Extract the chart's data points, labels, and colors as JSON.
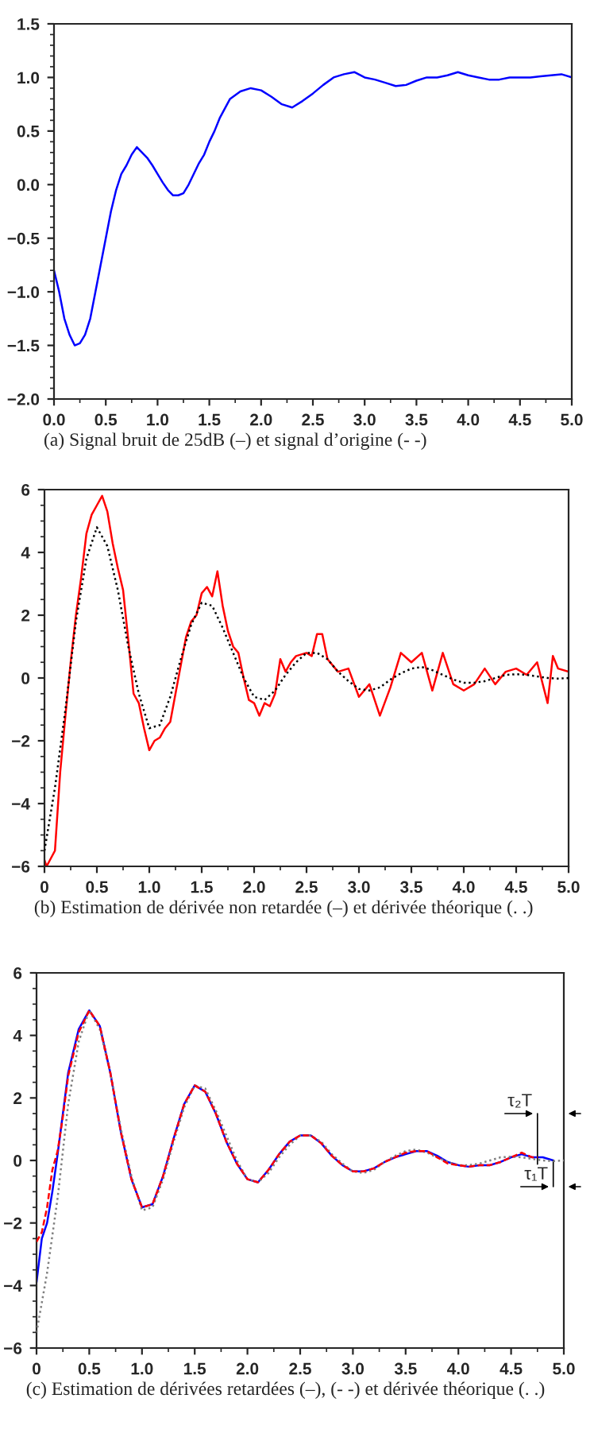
{
  "chart_data": [
    {
      "type": "line",
      "title": "(a) Signal bruit de 25dB (–) et signal d’origine (- -)",
      "series": [
        {
          "color": "#0000ff",
          "line_style": "solid",
          "x": [
            0,
            0.05,
            0.1,
            0.15,
            0.2,
            0.25,
            0.3,
            0.35,
            0.4,
            0.45,
            0.5,
            0.55,
            0.6,
            0.65,
            0.7,
            0.75,
            0.8,
            0.85,
            0.9,
            0.95,
            1.0,
            1.05,
            1.1,
            1.15,
            1.2,
            1.25,
            1.3,
            1.35,
            1.4,
            1.45,
            1.5,
            1.55,
            1.6,
            1.7,
            1.8,
            1.9,
            2.0,
            2.1,
            2.2,
            2.3,
            2.4,
            2.5,
            2.6,
            2.7,
            2.8,
            2.9,
            3.0,
            3.1,
            3.2,
            3.3,
            3.4,
            3.5,
            3.6,
            3.7,
            3.8,
            3.9,
            4.0,
            4.1,
            4.2,
            4.3,
            4.4,
            4.5,
            4.6,
            4.7,
            4.8,
            4.9,
            5.0
          ],
          "values": [
            -0.8,
            -1.0,
            -1.25,
            -1.4,
            -1.5,
            -1.48,
            -1.4,
            -1.25,
            -1.0,
            -0.75,
            -0.5,
            -0.25,
            -0.05,
            0.1,
            0.18,
            0.28,
            0.35,
            0.3,
            0.25,
            0.18,
            0.1,
            0.02,
            -0.05,
            -0.1,
            -0.1,
            -0.08,
            0.0,
            0.1,
            0.2,
            0.28,
            0.4,
            0.5,
            0.62,
            0.8,
            0.87,
            0.9,
            0.88,
            0.82,
            0.75,
            0.72,
            0.78,
            0.85,
            0.93,
            1.0,
            1.03,
            1.05,
            1.0,
            0.98,
            0.95,
            0.92,
            0.93,
            0.97,
            1.0,
            1.0,
            1.02,
            1.05,
            1.02,
            1.0,
            0.98,
            0.98,
            1.0,
            1.0,
            1.0,
            1.01,
            1.02,
            1.03,
            1.0
          ]
        }
      ],
      "xlim": [
        0,
        5
      ],
      "ylim": [
        -2,
        1.5
      ],
      "xticks": [
        {
          "value": 0,
          "label": "0.0"
        },
        0.5,
        {
          "value": 1,
          "label": "1.0"
        },
        1.5,
        {
          "value": 2,
          "label": "2.0"
        },
        2.5,
        {
          "value": 3,
          "label": "3.0"
        },
        3.5,
        {
          "value": 4,
          "label": "4.0"
        },
        4.5,
        {
          "value": 5,
          "label": "5.0"
        }
      ],
      "yticks": [
        {
          "value": -2,
          "label": "−2.0"
        },
        {
          "value": -1.5,
          "label": "−1.5"
        },
        {
          "value": -1,
          "label": "−1.0"
        },
        {
          "value": -0.5,
          "label": "−0.5"
        },
        {
          "value": 0,
          "label": "0.0"
        },
        0.5,
        {
          "value": 1,
          "label": "1.0"
        },
        1.5
      ],
      "grid": false,
      "legend": false
    },
    {
      "type": "line",
      "title": "(b) Estimation de dérivée non retardée (–) et dérivée théorique (. .)",
      "series": [
        {
          "color": "#ff0000",
          "line_style": "solid",
          "x": [
            0,
            0.02,
            0.1,
            0.15,
            0.2,
            0.25,
            0.3,
            0.35,
            0.4,
            0.45,
            0.5,
            0.55,
            0.6,
            0.65,
            0.7,
            0.75,
            0.8,
            0.85,
            0.9,
            0.95,
            1.0,
            1.05,
            1.1,
            1.15,
            1.2,
            1.25,
            1.3,
            1.35,
            1.4,
            1.45,
            1.5,
            1.55,
            1.6,
            1.65,
            1.7,
            1.75,
            1.8,
            1.85,
            1.9,
            1.95,
            2.0,
            2.05,
            2.1,
            2.15,
            2.2,
            2.25,
            2.3,
            2.35,
            2.4,
            2.5,
            2.55,
            2.6,
            2.65,
            2.7,
            2.8,
            2.9,
            3.0,
            3.1,
            3.2,
            3.3,
            3.4,
            3.5,
            3.6,
            3.7,
            3.8,
            3.9,
            4.0,
            4.1,
            4.2,
            4.3,
            4.4,
            4.5,
            4.6,
            4.7,
            4.8,
            4.85,
            4.9,
            5.0
          ],
          "values": [
            -5.8,
            -6,
            -5.5,
            -3,
            -1.2,
            0.5,
            2,
            3.2,
            4.6,
            5.2,
            5.5,
            5.8,
            5.3,
            4.3,
            3.5,
            2.8,
            1.2,
            -0.5,
            -0.8,
            -1.6,
            -2.3,
            -2.0,
            -1.9,
            -1.6,
            -1.4,
            -0.5,
            0.4,
            1.3,
            1.8,
            2.0,
            2.7,
            2.9,
            2.6,
            3.4,
            2.3,
            1.5,
            1.0,
            0.8,
            0.0,
            -0.7,
            -0.8,
            -1.2,
            -0.8,
            -0.9,
            -0.5,
            0.6,
            0.2,
            0.5,
            0.7,
            0.8,
            0.7,
            1.4,
            1.4,
            0.6,
            0.2,
            0.3,
            -0.6,
            -0.2,
            -1.2,
            -0.3,
            0.8,
            0.5,
            0.8,
            -0.4,
            0.8,
            -0.2,
            -0.4,
            -0.2,
            0.3,
            -0.2,
            0.2,
            0.3,
            0.1,
            0.5,
            -0.8,
            0.7,
            0.3,
            0.2
          ]
        },
        {
          "color": "#000000",
          "line_style": "dotted",
          "x": [
            0,
            0.1,
            0.2,
            0.3,
            0.4,
            0.5,
            0.6,
            0.7,
            0.8,
            0.9,
            1.0,
            1.1,
            1.2,
            1.3,
            1.4,
            1.5,
            1.6,
            1.7,
            1.8,
            1.9,
            2.0,
            2.1,
            2.2,
            2.3,
            2.4,
            2.5,
            2.6,
            2.7,
            2.8,
            2.9,
            3.0,
            3.1,
            3.2,
            3.3,
            3.4,
            3.5,
            3.6,
            3.7,
            3.8,
            3.9,
            4.0,
            4.1,
            4.2,
            4.3,
            4.4,
            4.5,
            4.6,
            4.7,
            4.8,
            4.9,
            5.0
          ],
          "values": [
            -5.5,
            -3.5,
            -1,
            1.8,
            3.8,
            4.8,
            4.2,
            2.8,
            1.0,
            -0.5,
            -1.6,
            -1.5,
            -0.6,
            0.6,
            1.7,
            2.4,
            2.3,
            1.6,
            0.8,
            0.0,
            -0.6,
            -0.7,
            -0.4,
            0.1,
            0.5,
            0.8,
            0.8,
            0.6,
            0.2,
            -0.1,
            -0.35,
            -0.4,
            -0.3,
            -0.05,
            0.15,
            0.3,
            0.35,
            0.25,
            0.1,
            -0.05,
            -0.15,
            -0.15,
            -0.1,
            0.0,
            0.1,
            0.12,
            0.1,
            0.05,
            0.0,
            -0.02,
            0.0
          ]
        }
      ],
      "xlim": [
        0,
        5
      ],
      "ylim": [
        -6,
        6
      ],
      "xticks": [
        0,
        0.5,
        {
          "value": 1,
          "label": "1.0"
        },
        1.5,
        {
          "value": 2,
          "label": "2.0"
        },
        2.5,
        {
          "value": 3,
          "label": "3.0"
        },
        3.5,
        {
          "value": 4,
          "label": "4.0"
        },
        4.5,
        {
          "value": 5,
          "label": "5.0"
        }
      ],
      "yticks": [
        {
          "value": -6,
          "label": "−6"
        },
        {
          "value": -4,
          "label": "−4"
        },
        {
          "value": -2,
          "label": "−2"
        },
        0,
        2,
        4,
        6
      ],
      "grid": false,
      "legend": false
    },
    {
      "type": "line",
      "title": "(c) Estimation de dérivées retardées (–), (- -) et dérivée théorique (. .)",
      "series": [
        {
          "color": "#808080",
          "line_style": "dotted",
          "x": [
            0,
            0.1,
            0.2,
            0.3,
            0.4,
            0.5,
            0.6,
            0.7,
            0.8,
            0.9,
            1.0,
            1.1,
            1.2,
            1.3,
            1.4,
            1.5,
            1.6,
            1.7,
            1.8,
            1.9,
            2.0,
            2.1,
            2.2,
            2.3,
            2.4,
            2.5,
            2.6,
            2.7,
            2.8,
            2.9,
            3.0,
            3.1,
            3.2,
            3.3,
            3.4,
            3.5,
            3.6,
            3.7,
            3.8,
            3.9,
            4.0,
            4.1,
            4.2,
            4.3,
            4.4,
            4.5,
            4.6,
            4.7,
            4.8,
            4.9,
            5.0
          ],
          "values": [
            -5.5,
            -3.6,
            -1.2,
            1.8,
            3.8,
            4.8,
            4.2,
            2.8,
            1.0,
            -0.5,
            -1.6,
            -1.5,
            -0.6,
            0.6,
            1.7,
            2.4,
            2.3,
            1.6,
            0.8,
            0.0,
            -0.6,
            -0.7,
            -0.4,
            0.1,
            0.5,
            0.8,
            0.8,
            0.6,
            0.2,
            -0.1,
            -0.35,
            -0.4,
            -0.3,
            -0.05,
            0.15,
            0.3,
            0.35,
            0.25,
            0.1,
            -0.05,
            -0.15,
            -0.15,
            -0.1,
            0.0,
            0.1,
            0.12,
            0.1,
            0.05,
            0.0,
            -0.02,
            0.0
          ]
        },
        {
          "color": "#ff0000",
          "line_style": "dashed",
          "x": [
            0,
            0.05,
            0.1,
            0.15,
            0.2,
            0.25,
            0.3,
            0.4,
            0.5,
            0.6,
            0.7,
            0.8,
            0.9,
            1.0,
            1.1,
            1.2,
            1.3,
            1.4,
            1.5,
            1.6,
            1.7,
            1.8,
            1.9,
            2.0,
            2.1,
            2.2,
            2.3,
            2.4,
            2.5,
            2.6,
            2.7,
            2.8,
            2.9,
            3.0,
            3.1,
            3.2,
            3.3,
            3.4,
            3.5,
            3.6,
            3.7,
            3.8,
            3.9,
            4.0,
            4.1,
            4.2,
            4.3,
            4.4,
            4.5,
            4.6,
            4.7,
            4.75
          ],
          "values": [
            -2.6,
            -2.3,
            -1.5,
            -0.3,
            0.3,
            1.4,
            2.7,
            4.1,
            4.8,
            4.3,
            2.8,
            0.9,
            -0.6,
            -1.5,
            -1.4,
            -0.5,
            0.7,
            1.8,
            2.4,
            2.2,
            1.5,
            0.6,
            -0.1,
            -0.6,
            -0.7,
            -0.3,
            0.2,
            0.6,
            0.8,
            0.8,
            0.55,
            0.15,
            -0.15,
            -0.35,
            -0.35,
            -0.25,
            -0.05,
            0.1,
            0.25,
            0.3,
            0.3,
            0.1,
            -0.1,
            -0.15,
            -0.2,
            -0.15,
            -0.15,
            -0.05,
            0.1,
            0.25,
            0.1,
            0.1
          ]
        },
        {
          "color": "#0000ff",
          "line_style": "solid",
          "x": [
            0,
            0.05,
            0.1,
            0.15,
            0.2,
            0.25,
            0.3,
            0.4,
            0.5,
            0.6,
            0.7,
            0.8,
            0.9,
            1.0,
            1.1,
            1.2,
            1.3,
            1.4,
            1.5,
            1.6,
            1.7,
            1.8,
            1.9,
            2.0,
            2.1,
            2.2,
            2.3,
            2.4,
            2.5,
            2.6,
            2.7,
            2.8,
            2.9,
            3.0,
            3.1,
            3.2,
            3.3,
            3.4,
            3.5,
            3.6,
            3.7,
            3.8,
            3.9,
            4.0,
            4.1,
            4.2,
            4.3,
            4.4,
            4.5,
            4.6,
            4.7,
            4.8,
            4.9
          ],
          "values": [
            -3.9,
            -2.5,
            -2.0,
            -1.0,
            0.2,
            1.5,
            2.8,
            4.2,
            4.8,
            4.3,
            2.8,
            0.9,
            -0.6,
            -1.5,
            -1.4,
            -0.5,
            0.7,
            1.8,
            2.4,
            2.2,
            1.5,
            0.6,
            -0.1,
            -0.6,
            -0.7,
            -0.3,
            0.2,
            0.6,
            0.8,
            0.8,
            0.55,
            0.15,
            -0.15,
            -0.35,
            -0.35,
            -0.25,
            -0.05,
            0.1,
            0.2,
            0.3,
            0.3,
            0.15,
            -0.05,
            -0.15,
            -0.2,
            -0.15,
            -0.15,
            -0.05,
            0.1,
            0.2,
            0.1,
            0.1,
            0.0
          ]
        }
      ],
      "xlim": [
        0,
        5
      ],
      "ylim": [
        -6,
        6
      ],
      "xticks": [
        0,
        0.5,
        {
          "value": 1,
          "label": "1.0"
        },
        1.5,
        {
          "value": 2,
          "label": "2.0"
        },
        2.5,
        {
          "value": 3,
          "label": "3.0"
        },
        3.5,
        {
          "value": 4,
          "label": "4.0"
        },
        4.5,
        {
          "value": 5,
          "label": "5.0"
        }
      ],
      "yticks": [
        {
          "value": -6,
          "label": "−6"
        },
        {
          "value": -4,
          "label": "−4"
        },
        {
          "value": -2,
          "label": "−2"
        },
        0,
        2,
        4,
        6
      ],
      "annotations": [
        "τ₂T",
        "τ₁T"
      ],
      "grid": false,
      "legend": false
    }
  ]
}
